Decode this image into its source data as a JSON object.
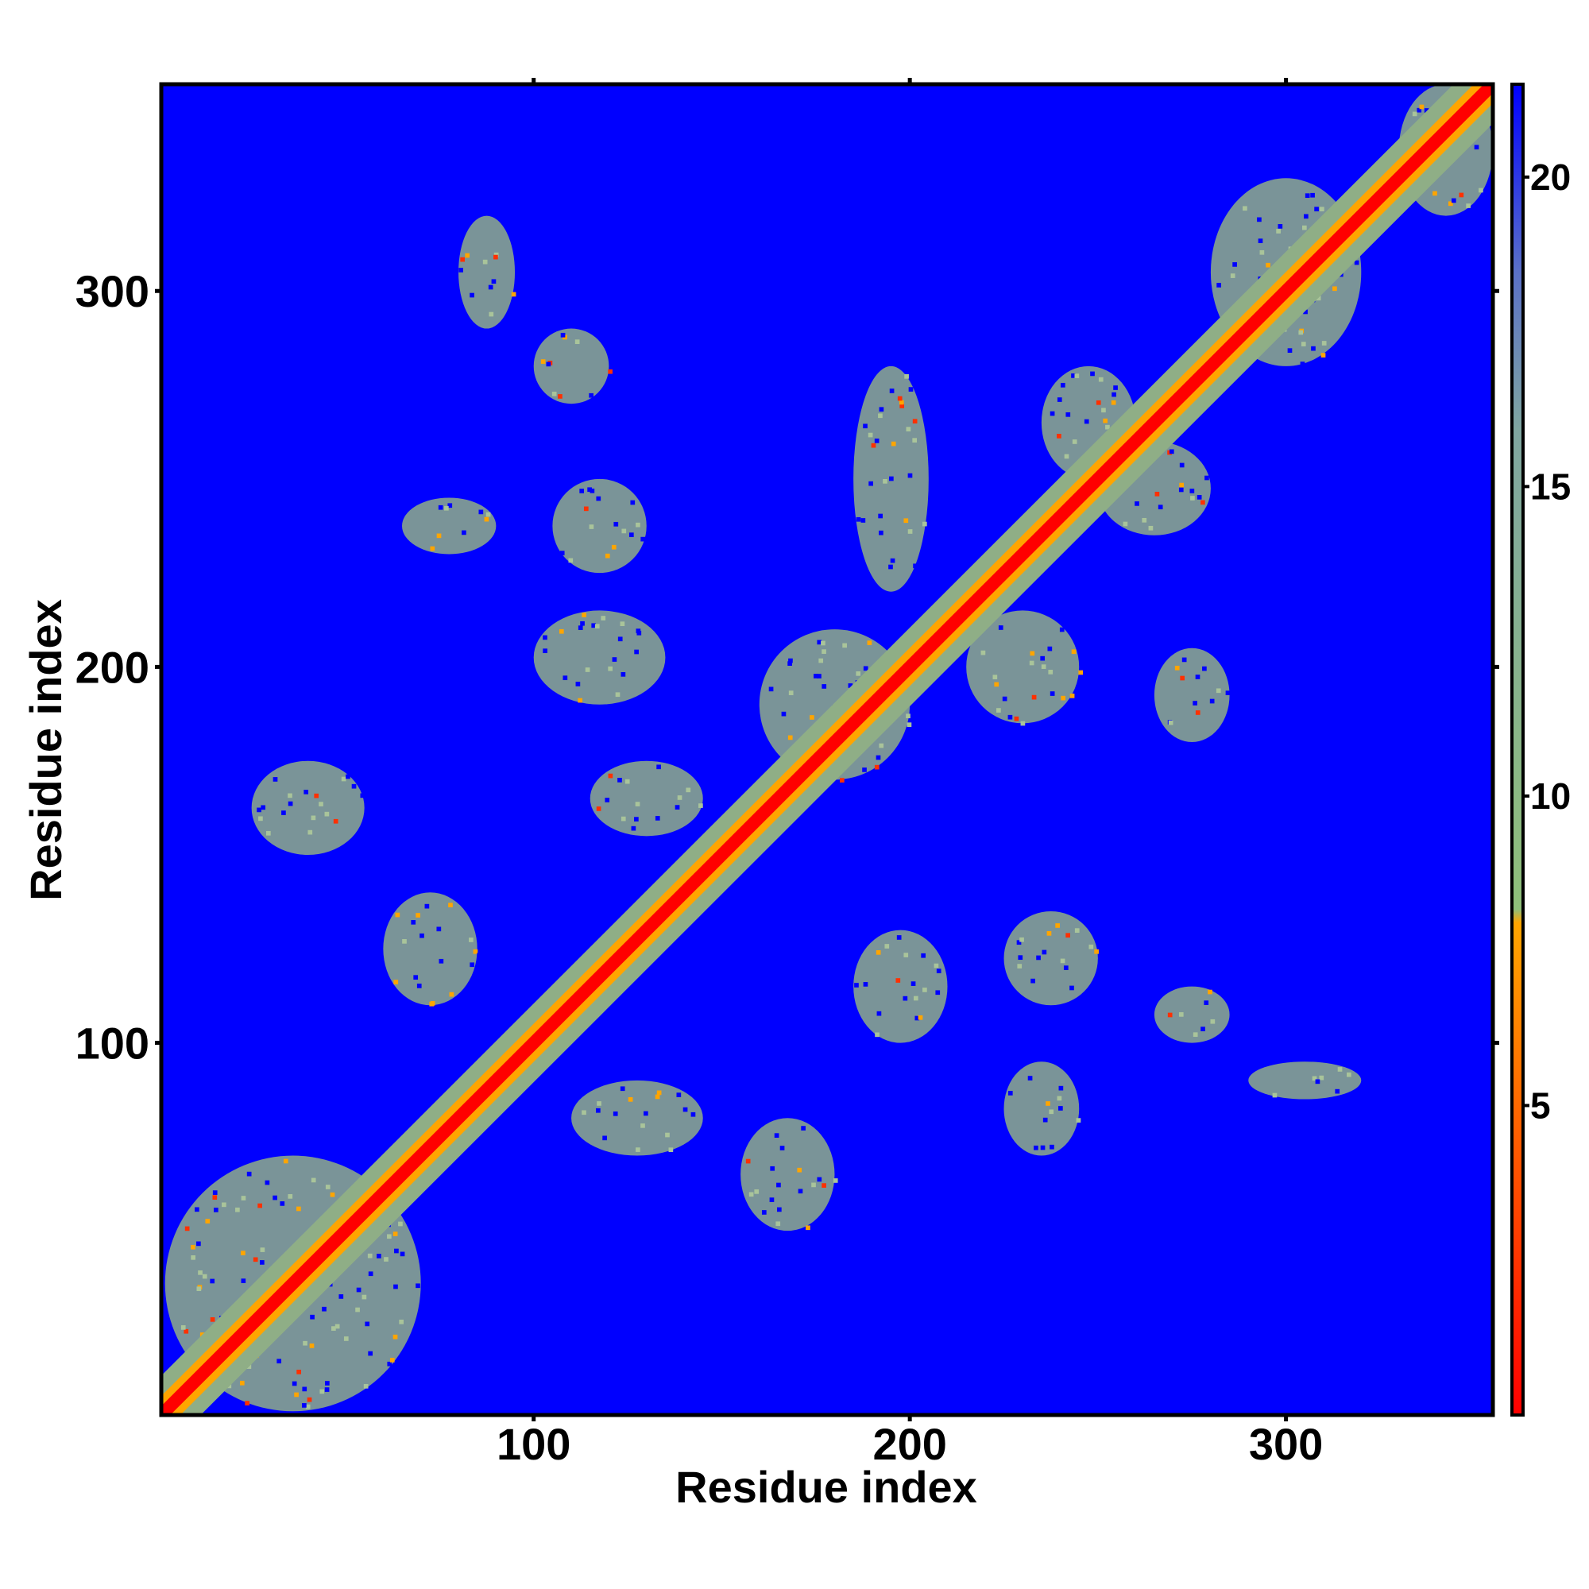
{
  "chart_data": {
    "type": "heatmap",
    "title": "",
    "xlabel": "Residue index",
    "ylabel": "Residue index",
    "xlim": [
      1,
      355
    ],
    "ylim": [
      1,
      355
    ],
    "x_ticks": [
      100,
      200,
      300
    ],
    "x_tick_labels": [
      "100",
      "200",
      "300"
    ],
    "y_ticks": [
      100,
      200,
      300
    ],
    "y_tick_labels": [
      "100",
      "200",
      "300"
    ],
    "colorbar": {
      "range": [
        0,
        21.5
      ],
      "ticks": [
        5,
        10,
        15,
        20
      ],
      "tick_labels": [
        "5",
        "10",
        "15",
        "20"
      ],
      "stops": [
        {
          "value": 0,
          "color": "#ff0000"
        },
        {
          "value": 4.5,
          "color": "#ff5a00"
        },
        {
          "value": 8,
          "color": "#ffa500"
        },
        {
          "value": 9,
          "color": "#8fbf7a"
        },
        {
          "value": 16,
          "color": "#80a6a0"
        },
        {
          "value": 21.5,
          "color": "#0000ff"
        }
      ]
    },
    "background_color": "#0000ff",
    "diagonal": {
      "from": 1,
      "to": 355,
      "color": "#ff0000"
    },
    "contact_regions": [
      {
        "x": [
          2,
          70
        ],
        "y": [
          2,
          70
        ],
        "level": "diagonal-band"
      },
      {
        "x": [
          25,
          55
        ],
        "y": [
          150,
          175
        ],
        "level": "medium"
      },
      {
        "x": [
          60,
          85
        ],
        "y": [
          110,
          140
        ],
        "level": "medium"
      },
      {
        "x": [
          110,
          145
        ],
        "y": [
          70,
          90
        ],
        "level": "medium"
      },
      {
        "x": [
          100,
          135
        ],
        "y": [
          190,
          215
        ],
        "level": "medium"
      },
      {
        "x": [
          115,
          145
        ],
        "y": [
          155,
          175
        ],
        "level": "medium"
      },
      {
        "x": [
          160,
          200
        ],
        "y": [
          170,
          210
        ],
        "level": "medium"
      },
      {
        "x": [
          155,
          180
        ],
        "y": [
          50,
          80
        ],
        "level": "medium"
      },
      {
        "x": [
          185,
          210
        ],
        "y": [
          100,
          130
        ],
        "level": "medium"
      },
      {
        "x": [
          225,
          250
        ],
        "y": [
          110,
          135
        ],
        "level": "medium"
      },
      {
        "x": [
          225,
          245
        ],
        "y": [
          70,
          95
        ],
        "level": "medium"
      },
      {
        "x": [
          265,
          285
        ],
        "y": [
          100,
          115
        ],
        "level": "medium"
      },
      {
        "x": [
          290,
          320
        ],
        "y": [
          85,
          95
        ],
        "level": "low"
      },
      {
        "x": [
          65,
          90
        ],
        "y": [
          230,
          245
        ],
        "level": "medium"
      },
      {
        "x": [
          105,
          130
        ],
        "y": [
          225,
          250
        ],
        "level": "medium"
      },
      {
        "x": [
          100,
          120
        ],
        "y": [
          270,
          290
        ],
        "level": "medium"
      },
      {
        "x": [
          80,
          95
        ],
        "y": [
          290,
          320
        ],
        "level": "low"
      },
      {
        "x": [
          185,
          205
        ],
        "y": [
          220,
          280
        ],
        "level": "medium"
      },
      {
        "x": [
          235,
          260
        ],
        "y": [
          250,
          280
        ],
        "level": "medium"
      },
      {
        "x": [
          250,
          280
        ],
        "y": [
          235,
          260
        ],
        "level": "medium"
      },
      {
        "x": [
          215,
          245
        ],
        "y": [
          185,
          215
        ],
        "level": "medium"
      },
      {
        "x": [
          265,
          285
        ],
        "y": [
          180,
          205
        ],
        "level": "medium"
      },
      {
        "x": [
          280,
          320
        ],
        "y": [
          280,
          330
        ],
        "level": "medium"
      },
      {
        "x": [
          330,
          355
        ],
        "y": [
          320,
          355
        ],
        "level": "medium"
      }
    ]
  }
}
